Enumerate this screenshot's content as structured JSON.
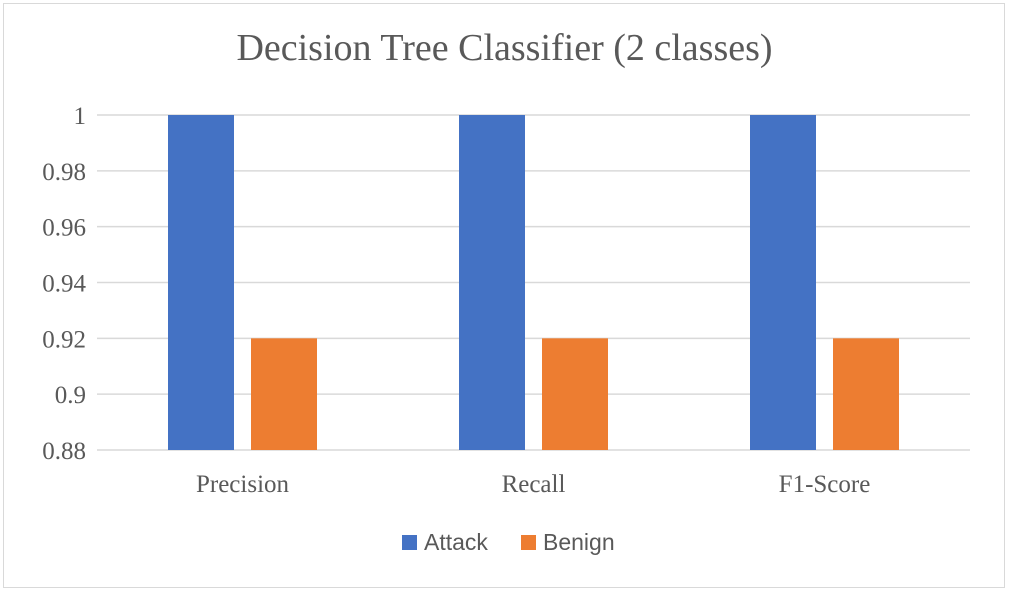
{
  "chart_data": {
    "type": "bar",
    "title": "Decision Tree Classifier (2 classes)",
    "categories": [
      "Precision",
      "Recall",
      "F1-Score"
    ],
    "series": [
      {
        "name": "Attack",
        "values": [
          1.0,
          1.0,
          1.0
        ],
        "color": "#4472c4"
      },
      {
        "name": "Benign",
        "values": [
          0.92,
          0.92,
          0.92
        ],
        "color": "#ed7d31"
      }
    ],
    "ylim": [
      0.88,
      1.0
    ],
    "yticks": [
      "0.88",
      "0.9",
      "0.92",
      "0.94",
      "0.96",
      "0.98",
      "1"
    ],
    "xlabel": "",
    "ylabel": "",
    "grid": true,
    "legend": "bottom"
  }
}
